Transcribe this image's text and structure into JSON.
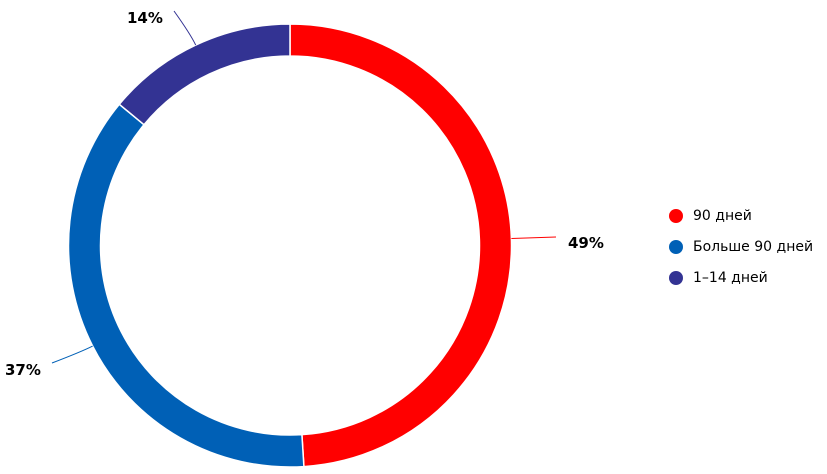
{
  "chart_data": {
    "type": "pie",
    "variant": "donut",
    "title": "",
    "start": "top",
    "direction": "clockwise",
    "series": [
      {
        "name": "90 дней",
        "value": 49,
        "label": "49%",
        "color": "#ff0000"
      },
      {
        "name": "Больше 90 дней",
        "value": 37,
        "label": "37%",
        "color": "#0060b6"
      },
      {
        "name": "1–14 дней",
        "value": 14,
        "label": "14%",
        "color": "#333393"
      }
    ],
    "legend": "right"
  }
}
